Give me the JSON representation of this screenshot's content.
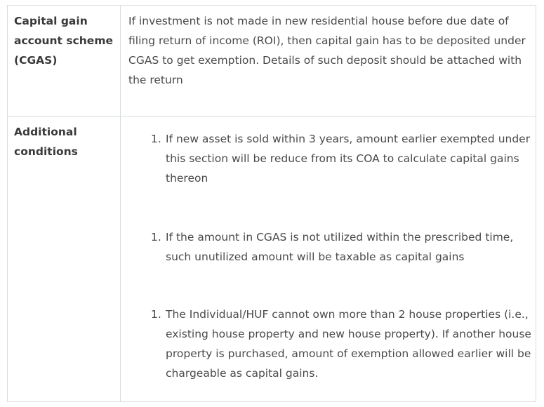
{
  "rows": [
    {
      "label": "Capital gain account scheme (CGAS)",
      "text": "If investment is not made in new residential house before due date of filing return of income (ROI), then capital gain has to be deposited under CGAS to get exemption. Details of such deposit should be attached with the return"
    },
    {
      "label": "Additional conditions",
      "items": [
        {
          "number": "1.",
          "text": "If new asset is sold within 3 years, amount earlier exempted under this section will be reduce from its COA to calculate capital gains thereon"
        },
        {
          "number": "1.",
          "text": "If the amount in CGAS is not utilized within the prescribed time, such unutilized amount will be taxable as capital gains"
        },
        {
          "number": "1.",
          "text": "The Individual/HUF cannot own more than 2 house properties (i.e., existing house property and new house property). If another house property is purchased, amount of exemption allowed earlier will be chargeable as capital gains."
        }
      ]
    }
  ]
}
